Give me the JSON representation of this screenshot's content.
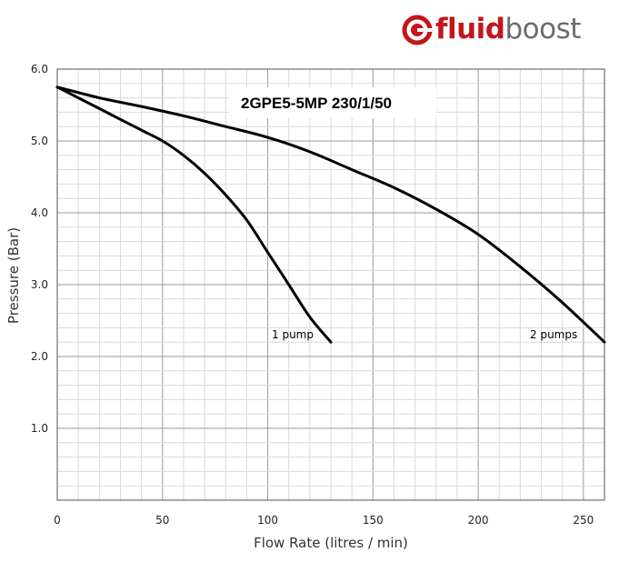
{
  "logo": {
    "bold_text": "fluid",
    "light_text": "boost",
    "icon": "fluidboost-logo-icon",
    "colors": {
      "red": "#c3161c",
      "grey": "#6b6b6b"
    }
  },
  "chart_data": {
    "type": "line",
    "title": "2GPE5-5MP 230/1/50",
    "xlabel": "Flow Rate (litres / min)",
    "ylabel": "Pressure (Bar)",
    "xlim": [
      0,
      260
    ],
    "ylim": [
      0,
      6
    ],
    "xticks": [
      "0",
      "50",
      "100",
      "150",
      "200",
      "250"
    ],
    "yticks": [
      "1.0",
      "2.0",
      "3.0",
      "4.0",
      "5.0",
      "6.0"
    ],
    "grid": true,
    "series": [
      {
        "name": "1 pump",
        "x": [
          0,
          10,
          20,
          30,
          40,
          50,
          60,
          70,
          80,
          90,
          100,
          110,
          120,
          130
        ],
        "y": [
          5.75,
          5.6,
          5.45,
          5.3,
          5.15,
          5.0,
          4.8,
          4.55,
          4.25,
          3.9,
          3.45,
          3.0,
          2.55,
          2.2
        ]
      },
      {
        "name": "2 pumps",
        "x": [
          0,
          20,
          40,
          60,
          80,
          100,
          120,
          140,
          160,
          180,
          200,
          220,
          240,
          260
        ],
        "y": [
          5.75,
          5.6,
          5.48,
          5.35,
          5.2,
          5.05,
          4.85,
          4.6,
          4.35,
          4.05,
          3.7,
          3.25,
          2.75,
          2.2
        ]
      }
    ]
  }
}
